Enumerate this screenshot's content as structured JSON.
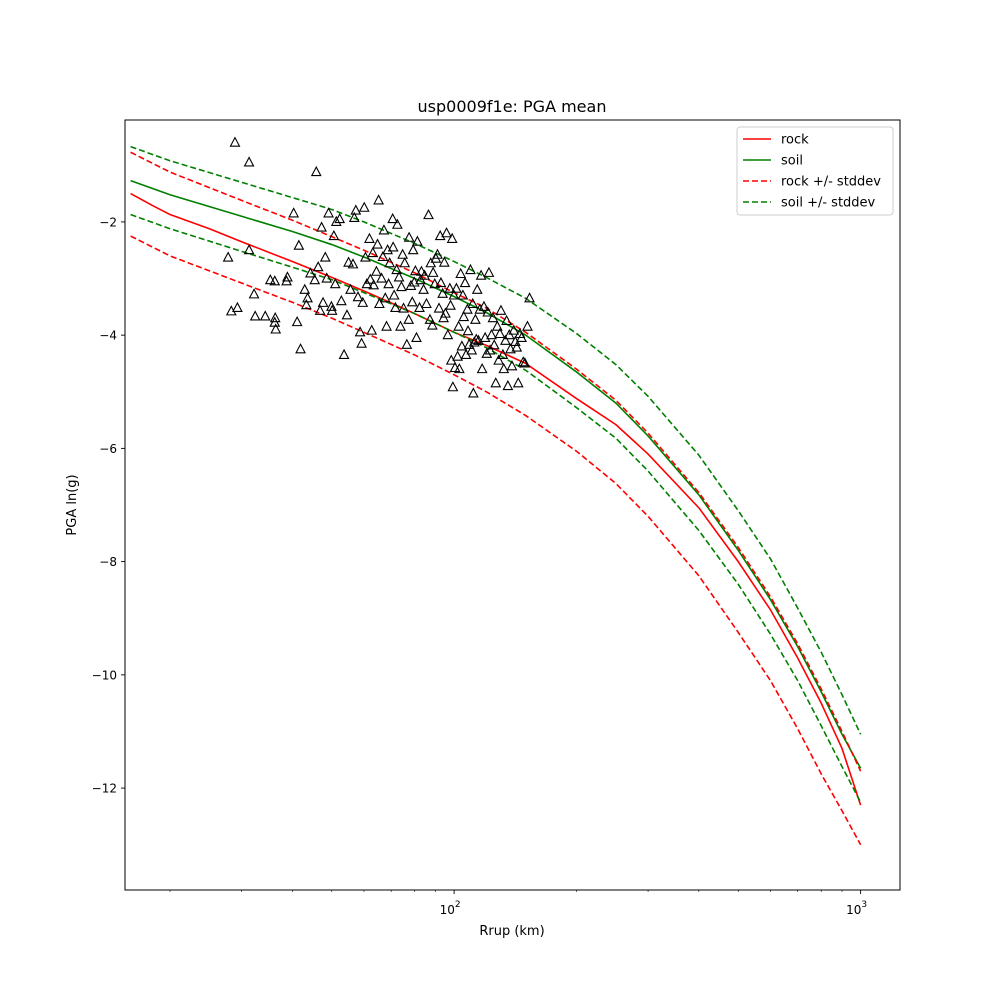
{
  "chart_data": {
    "type": "scatter",
    "title": "usp0009f1e: PGA mean",
    "xlabel": "Rrup (km)",
    "ylabel": "PGA ln(g)",
    "xscale": "log",
    "xlim": [
      15.5,
      1250
    ],
    "ylim": [
      -13.8,
      -0.2
    ],
    "xticks": [
      {
        "value": 100,
        "base": "10",
        "exp": "2"
      },
      {
        "value": 1000,
        "base": "10",
        "exp": "3"
      }
    ],
    "yticks": [
      -2,
      -4,
      -6,
      -8,
      -10,
      -12
    ],
    "ytick_labels": [
      "−2",
      "−4",
      "−6",
      "−8",
      "−10",
      "−12"
    ],
    "legend": {
      "position": "upper right",
      "entries": [
        {
          "label": "rock",
          "color": "#ff0000",
          "style": "solid"
        },
        {
          "label": "soil",
          "color": "#008000",
          "style": "solid"
        },
        {
          "label": "rock +/- stddev",
          "color": "#ff0000",
          "style": "dashed"
        },
        {
          "label": "soil +/- stddev",
          "color": "#008000",
          "style": "dashed"
        }
      ]
    },
    "lines": [
      {
        "name": "rock",
        "color": "#ff0000",
        "style": "solid",
        "x": [
          16,
          18,
          20,
          25,
          30,
          40,
          50,
          60,
          70,
          80,
          100,
          120,
          150,
          200,
          250,
          300,
          400,
          500,
          600,
          700,
          800,
          900,
          1000
        ],
        "y": [
          -1.5,
          -1.7,
          -1.87,
          -2.12,
          -2.35,
          -2.7,
          -2.98,
          -3.22,
          -3.43,
          -3.62,
          -3.95,
          -4.18,
          -4.5,
          -5.12,
          -5.58,
          -6.1,
          -7.05,
          -8.0,
          -8.85,
          -9.7,
          -10.5,
          -11.3,
          -12.3
        ]
      },
      {
        "name": "soil",
        "color": "#008000",
        "style": "solid",
        "x": [
          16,
          20,
          30,
          40,
          50,
          60,
          80,
          100,
          120,
          150,
          200,
          250,
          300,
          400,
          500,
          600,
          700,
          800,
          900,
          1000
        ],
        "y": [
          -1.27,
          -1.52,
          -1.9,
          -2.17,
          -2.4,
          -2.62,
          -3.0,
          -3.32,
          -3.6,
          -4.0,
          -4.65,
          -5.2,
          -5.78,
          -6.82,
          -7.8,
          -8.67,
          -9.5,
          -10.3,
          -11.05,
          -11.65
        ]
      },
      {
        "name": "rock + stddev",
        "color": "#ff0000",
        "style": "dashed",
        "x": [
          16,
          20,
          30,
          40,
          50,
          60,
          80,
          100,
          120,
          150,
          200,
          250,
          300,
          400,
          500,
          600,
          700,
          800,
          900,
          1000
        ],
        "y": [
          -0.77,
          -1.12,
          -1.62,
          -1.97,
          -2.26,
          -2.5,
          -2.9,
          -3.25,
          -3.52,
          -3.95,
          -4.6,
          -5.15,
          -5.73,
          -6.78,
          -7.75,
          -8.62,
          -9.45,
          -10.25,
          -11.0,
          -11.7
        ]
      },
      {
        "name": "rock - stddev",
        "color": "#ff0000",
        "style": "dashed",
        "x": [
          16,
          20,
          30,
          40,
          50,
          60,
          80,
          100,
          120,
          150,
          200,
          250,
          300,
          400,
          500,
          600,
          700,
          800,
          900,
          1000
        ],
        "y": [
          -2.25,
          -2.6,
          -3.08,
          -3.42,
          -3.7,
          -3.95,
          -4.35,
          -4.7,
          -5.0,
          -5.42,
          -6.05,
          -6.62,
          -7.2,
          -8.25,
          -9.25,
          -10.1,
          -10.95,
          -11.75,
          -12.4,
          -13.0
        ]
      },
      {
        "name": "soil + stddev",
        "color": "#008000",
        "style": "dashed",
        "x": [
          16,
          20,
          30,
          40,
          50,
          60,
          80,
          100,
          120,
          150,
          200,
          250,
          300,
          400,
          500,
          600,
          700,
          800,
          900,
          1000
        ],
        "y": [
          -0.67,
          -0.92,
          -1.3,
          -1.57,
          -1.78,
          -2.0,
          -2.38,
          -2.7,
          -2.98,
          -3.35,
          -3.97,
          -4.52,
          -5.08,
          -6.12,
          -7.1,
          -7.95,
          -8.82,
          -9.6,
          -10.35,
          -11.05
        ]
      },
      {
        "name": "soil - stddev",
        "color": "#008000",
        "style": "dashed",
        "x": [
          16,
          20,
          30,
          40,
          50,
          60,
          80,
          100,
          120,
          150,
          200,
          250,
          300,
          400,
          500,
          600,
          700,
          800,
          900,
          1000
        ],
        "y": [
          -1.87,
          -2.12,
          -2.52,
          -2.8,
          -3.02,
          -3.25,
          -3.62,
          -3.95,
          -4.22,
          -4.62,
          -5.28,
          -5.82,
          -6.4,
          -7.45,
          -8.4,
          -9.28,
          -10.1,
          -10.9,
          -11.62,
          -12.25
        ]
      }
    ],
    "scatter": {
      "marker": "triangle",
      "color": "#000000",
      "points": [
        [
          28.9,
          -0.6
        ],
        [
          31.3,
          -0.95
        ],
        [
          27.8,
          -2.63
        ],
        [
          28.3,
          -3.58
        ],
        [
          29.3,
          -3.52
        ],
        [
          31.3,
          -2.5
        ],
        [
          32.2,
          -3.28
        ],
        [
          32.4,
          -3.67
        ],
        [
          34.3,
          -3.67
        ],
        [
          35.3,
          -3.03
        ],
        [
          36.2,
          -3.05
        ],
        [
          36.3,
          -3.7
        ],
        [
          36.2,
          -3.78
        ],
        [
          36.4,
          -3.9
        ],
        [
          38.7,
          -3.05
        ],
        [
          38.9,
          -2.98
        ],
        [
          40.3,
          -1.85
        ],
        [
          41.1,
          -3.77
        ],
        [
          41.5,
          -2.42
        ],
        [
          41.9,
          -4.25
        ],
        [
          42.9,
          -3.2
        ],
        [
          43.3,
          -3.47
        ],
        [
          43.6,
          -3.35
        ],
        [
          44.3,
          -2.91
        ],
        [
          45.4,
          -3.03
        ],
        [
          45.8,
          -1.12
        ],
        [
          46.3,
          -2.8
        ],
        [
          46.8,
          -3.57
        ],
        [
          47.2,
          -2.1
        ],
        [
          47.6,
          -3.43
        ],
        [
          48.2,
          -2.63
        ],
        [
          48.6,
          -3.0
        ],
        [
          49.1,
          -1.85
        ],
        [
          49.9,
          -3.5
        ],
        [
          50.1,
          -3.57
        ],
        [
          50.6,
          -2.25
        ],
        [
          51.0,
          -3.1
        ],
        [
          51.3,
          -2.0
        ],
        [
          52.3,
          -1.95
        ],
        [
          52.8,
          -3.4
        ],
        [
          53.6,
          -4.35
        ],
        [
          54.5,
          -3.65
        ],
        [
          55.0,
          -2.72
        ],
        [
          55.6,
          -3.2
        ],
        [
          56.4,
          -2.75
        ],
        [
          56.8,
          -1.93
        ],
        [
          57.3,
          -1.8
        ],
        [
          58.0,
          -3.33
        ],
        [
          58.7,
          -3.95
        ],
        [
          59.2,
          -4.15
        ],
        [
          59.6,
          -3.43
        ],
        [
          60.1,
          -1.75
        ],
        [
          60.5,
          -2.63
        ],
        [
          61.0,
          -3.1
        ],
        [
          61.9,
          -2.3
        ],
        [
          62.2,
          -3.02
        ],
        [
          62.7,
          -3.92
        ],
        [
          63.1,
          -2.55
        ],
        [
          63.4,
          -3.12
        ],
        [
          64.4,
          -2.88
        ],
        [
          64.8,
          -2.4
        ],
        [
          65.2,
          -1.62
        ],
        [
          65.5,
          -3.45
        ],
        [
          66.3,
          -3.0
        ],
        [
          66.8,
          -2.62
        ],
        [
          67.2,
          -2.15
        ],
        [
          67.7,
          -3.35
        ],
        [
          68.2,
          -3.85
        ],
        [
          68.6,
          -2.5
        ],
        [
          69.0,
          -3.1
        ],
        [
          69.4,
          -2.73
        ],
        [
          70.6,
          -1.95
        ],
        [
          70.8,
          -2.45
        ],
        [
          71.2,
          -3.3
        ],
        [
          71.7,
          -3.52
        ],
        [
          72.2,
          -2.85
        ],
        [
          72.5,
          -2.05
        ],
        [
          73.2,
          -2.98
        ],
        [
          73.8,
          -3.85
        ],
        [
          74.2,
          -3.15
        ],
        [
          74.7,
          -2.58
        ],
        [
          75.1,
          -3.53
        ],
        [
          75.6,
          -2.73
        ],
        [
          76.5,
          -4.17
        ],
        [
          77.3,
          -3.73
        ],
        [
          77.5,
          -2.28
        ],
        [
          78.3,
          -3.13
        ],
        [
          78.9,
          -3.42
        ],
        [
          79.3,
          -2.5
        ],
        [
          79.8,
          -3.07
        ],
        [
          80.3,
          -2.87
        ],
        [
          80.8,
          -4.05
        ],
        [
          81.2,
          -2.35
        ],
        [
          82.2,
          -3.52
        ],
        [
          82.7,
          -3.03
        ],
        [
          83.1,
          -2.88
        ],
        [
          84.1,
          -3.2
        ],
        [
          84.6,
          -2.95
        ],
        [
          85.5,
          -3.45
        ],
        [
          86.5,
          -1.88
        ],
        [
          87.2,
          -3.73
        ],
        [
          87.6,
          -2.73
        ],
        [
          88.4,
          -3.83
        ],
        [
          88.8,
          -2.9
        ],
        [
          89.6,
          -3.1
        ],
        [
          90.2,
          -2.65
        ],
        [
          91.0,
          -2.58
        ],
        [
          91.8,
          -3.53
        ],
        [
          92.4,
          -2.25
        ],
        [
          92.8,
          -3.08
        ],
        [
          93.7,
          -3.27
        ],
        [
          94.2,
          -3.7
        ],
        [
          94.6,
          -2.72
        ],
        [
          95.2,
          -3.62
        ],
        [
          95.8,
          -2.2
        ],
        [
          96.5,
          -4.0
        ],
        [
          97.6,
          -3.18
        ],
        [
          98.0,
          -3.48
        ],
        [
          98.4,
          -4.45
        ],
        [
          98.9,
          -2.3
        ],
        [
          99.3,
          -4.92
        ],
        [
          99.9,
          -3.3
        ],
        [
          100.5,
          -4.58
        ],
        [
          101.3,
          -3.18
        ],
        [
          102.0,
          -4.38
        ],
        [
          102.6,
          -3.85
        ],
        [
          103.0,
          -4.6
        ],
        [
          103.8,
          -2.92
        ],
        [
          104.5,
          -4.2
        ],
        [
          105.1,
          -3.3
        ],
        [
          105.6,
          -3.68
        ],
        [
          106.4,
          -3.08
        ],
        [
          107.0,
          -4.35
        ],
        [
          107.8,
          -3.55
        ],
        [
          108.2,
          -3.93
        ],
        [
          108.9,
          -4.17
        ],
        [
          109.7,
          -2.85
        ],
        [
          110.5,
          -4.27
        ],
        [
          111.1,
          -3.45
        ],
        [
          111.5,
          -5.03
        ],
        [
          112.1,
          -4.13
        ],
        [
          112.8,
          -3.73
        ],
        [
          113.4,
          -4.08
        ],
        [
          114.0,
          -3.2
        ],
        [
          114.8,
          -4.1
        ],
        [
          115.7,
          -3.55
        ],
        [
          116.5,
          -2.95
        ],
        [
          117.2,
          -4.6
        ],
        [
          118.4,
          -3.5
        ],
        [
          119.2,
          -4.05
        ],
        [
          120.3,
          -4.33
        ],
        [
          121.0,
          -3.6
        ],
        [
          121.8,
          -2.9
        ],
        [
          122.6,
          -4.27
        ],
        [
          123.6,
          -4.0
        ],
        [
          124.6,
          -3.7
        ],
        [
          125.5,
          -4.18
        ],
        [
          126.6,
          -4.85
        ],
        [
          127.7,
          -3.85
        ],
        [
          128.7,
          -4.45
        ],
        [
          129.6,
          -3.98
        ],
        [
          130.4,
          -3.57
        ],
        [
          131.8,
          -4.35
        ],
        [
          132.5,
          -4.6
        ],
        [
          133.7,
          -4.1
        ],
        [
          134.6,
          -3.75
        ],
        [
          135.6,
          -4.9
        ],
        [
          136.7,
          -4.0
        ],
        [
          137.6,
          -4.25
        ],
        [
          138.8,
          -4.55
        ],
        [
          140.2,
          -3.92
        ],
        [
          141.4,
          -4.12
        ],
        [
          142.6,
          -4.22
        ],
        [
          143.8,
          -4.85
        ],
        [
          145.2,
          -3.98
        ],
        [
          146.5,
          -4.05
        ],
        [
          147.9,
          -4.48
        ],
        [
          149.3,
          -4.5
        ],
        [
          151.5,
          -3.85
        ],
        [
          153.3,
          -3.35
        ]
      ]
    }
  }
}
